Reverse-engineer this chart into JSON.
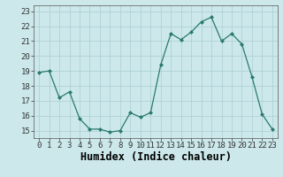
{
  "x": [
    0,
    1,
    2,
    3,
    4,
    5,
    6,
    7,
    8,
    9,
    10,
    11,
    12,
    13,
    14,
    15,
    16,
    17,
    18,
    19,
    20,
    21,
    22,
    23
  ],
  "y": [
    18.9,
    19.0,
    17.2,
    17.6,
    15.8,
    15.1,
    15.1,
    14.9,
    15.0,
    16.2,
    15.9,
    16.2,
    19.4,
    21.5,
    21.1,
    21.6,
    22.3,
    22.6,
    21.0,
    21.5,
    20.8,
    18.6,
    16.1,
    15.1
  ],
  "xlabel": "Humidex (Indice chaleur)",
  "ylim": [
    14.5,
    23.4
  ],
  "xlim": [
    -0.5,
    23.5
  ],
  "yticks": [
    15,
    16,
    17,
    18,
    19,
    20,
    21,
    22,
    23
  ],
  "xticks": [
    0,
    1,
    2,
    3,
    4,
    5,
    6,
    7,
    8,
    9,
    10,
    11,
    12,
    13,
    14,
    15,
    16,
    17,
    18,
    19,
    20,
    21,
    22,
    23
  ],
  "line_color": "#2a7a6e",
  "marker_color": "#2a7a6e",
  "bg_color": "#cce8ea",
  "grid_color": "#aacdd4",
  "tick_label_fontsize": 6.5,
  "xlabel_fontsize": 8.5
}
